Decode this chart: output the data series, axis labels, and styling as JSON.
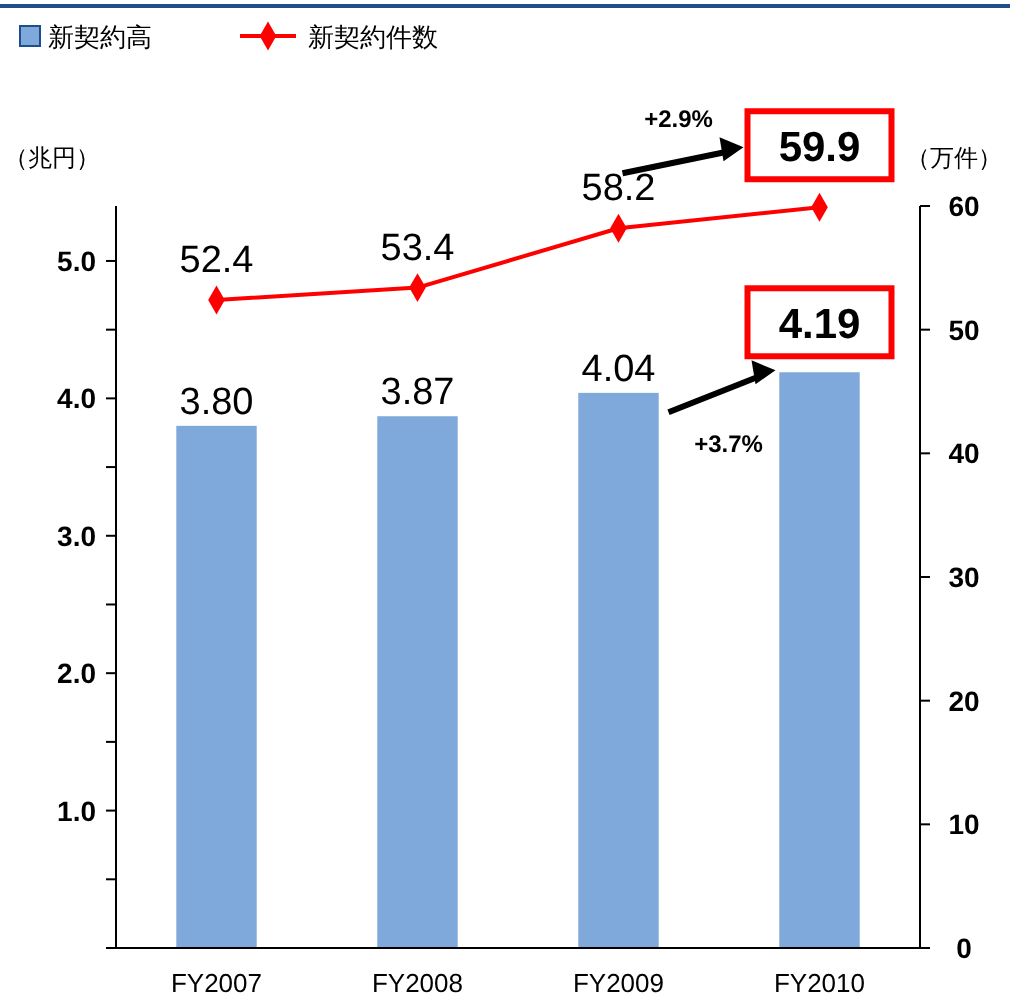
{
  "chart_data": {
    "type": "bar",
    "categories": [
      "FY2007",
      "FY2008",
      "FY2009",
      "FY2010"
    ],
    "ylabel": "（兆円）",
    "y2label": "（万件）",
    "ylim": [
      0,
      5.4
    ],
    "yticks": [
      {
        "value": 0,
        "label": null
      },
      {
        "value": 0.5,
        "label": null
      },
      {
        "value": 1,
        "label": "1.0"
      },
      {
        "value": 1.5,
        "label": null
      },
      {
        "value": 2,
        "label": "2.0"
      },
      {
        "value": 2.5,
        "label": null
      },
      {
        "value": 3,
        "label": "3.0"
      },
      {
        "value": 3.5,
        "label": null
      },
      {
        "value": 4,
        "label": "4.0"
      },
      {
        "value": 4.5,
        "label": null
      },
      {
        "value": 5,
        "label": "5.0"
      }
    ],
    "y2lim": [
      0,
      60
    ],
    "y2ticks": [
      0,
      10,
      20,
      30,
      40,
      50,
      60
    ],
    "series": [
      {
        "name": "新契約高",
        "color": "#7fa9da",
        "values": [
          3.8,
          3.87,
          4.04,
          4.19
        ],
        "value_labels": [
          "3.80",
          "3.87",
          "4.04",
          "4.19"
        ]
      },
      {
        "name": "新契約件数",
        "type": "line",
        "axis": "y2",
        "color": "#ff0000",
        "marker": "diamond",
        "values": [
          52.4,
          53.4,
          58.2,
          59.9
        ],
        "value_labels": [
          "52.4",
          "53.4",
          "58.2",
          "59.9"
        ]
      }
    ],
    "annotations": [
      "+2.9%",
      "+3.7%"
    ],
    "legend": "top left",
    "grid": false
  }
}
